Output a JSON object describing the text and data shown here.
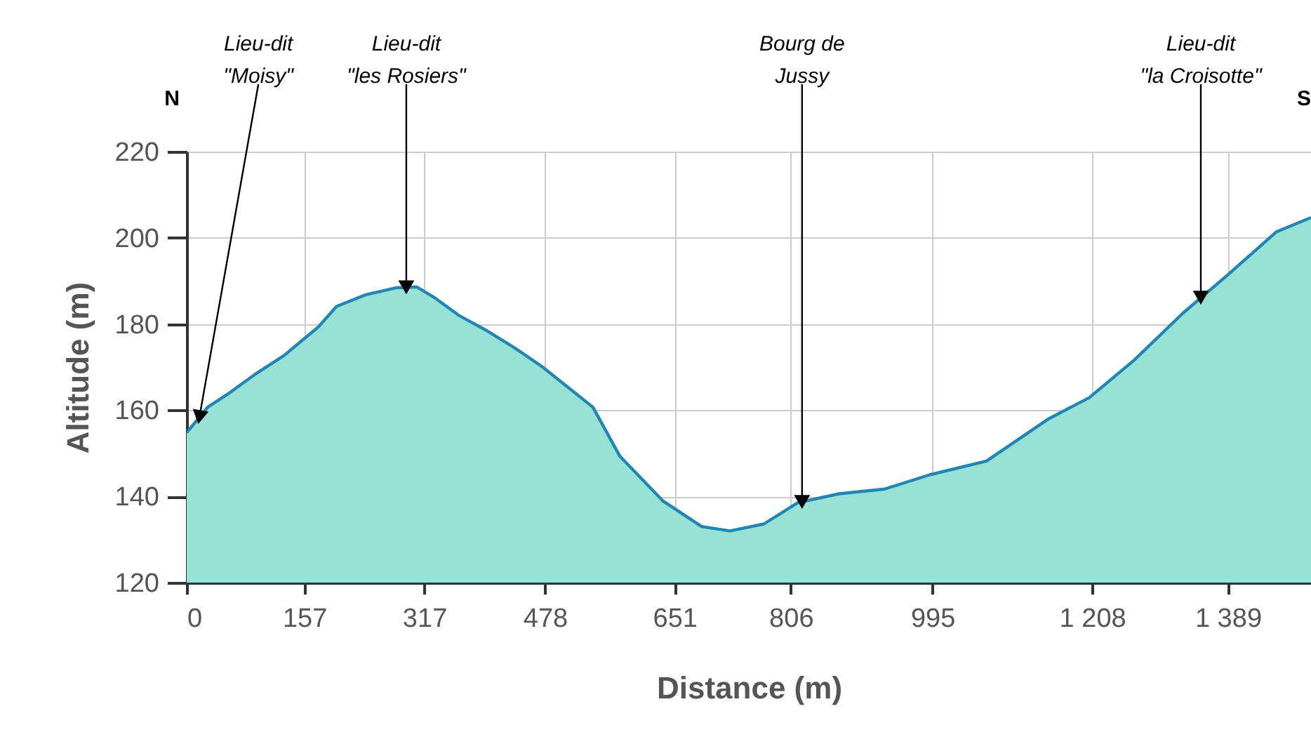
{
  "chart_data": {
    "type": "area",
    "xlabel": "Distance (m)",
    "ylabel": "Altitude (m)",
    "x": [
      0,
      28,
      57,
      91,
      130,
      152,
      175,
      200,
      239,
      279,
      307,
      330,
      364,
      399,
      439,
      475,
      511,
      542,
      578,
      635,
      687,
      725,
      770,
      815,
      870,
      931,
      991,
      1067,
      1150,
      1204,
      1264,
      1329,
      1387,
      1454,
      1500
    ],
    "series": [
      {
        "color": "#98e2d5",
        "values": [
          154.8,
          160.7,
          164,
          168.3,
          172.7,
          175.9,
          179.2,
          184.1,
          186.8,
          188.4,
          188.6,
          186.2,
          181.9,
          178.6,
          174.3,
          170,
          165,
          160.7,
          149.3,
          139,
          133,
          132,
          133.6,
          138.5,
          140.6,
          141.7,
          145,
          148.2,
          158,
          162.9,
          171.6,
          182.5,
          191.1,
          201.4,
          204.7
        ]
      }
    ],
    "xlim": [
      0,
      1500
    ],
    "xticks": [
      0,
      157,
      317,
      478,
      651,
      806,
      995,
      {
        "value": 1208,
        "label": "1 208"
      },
      {
        "value": 1389,
        "label": "1 389"
      }
    ],
    "ylim": [
      120,
      220
    ],
    "yticks": [
      120,
      140,
      160,
      180,
      200,
      220
    ],
    "grid": true,
    "annotations": [
      {
        "text": "Lieu-dit\n\"Moisy\"",
        "x": 17,
        "y": 158.4
      },
      {
        "text": "Lieu-dit\n\"les Rosiers\"",
        "x": 293,
        "y": 188.5
      },
      {
        "text": "Bourg de\nJussy",
        "x": 821,
        "y": 138.7
      },
      {
        "text": "Lieu-dit\n\"la Croisotte\"",
        "x": 1353,
        "y": 186.1
      },
      "N",
      "S"
    ]
  }
}
